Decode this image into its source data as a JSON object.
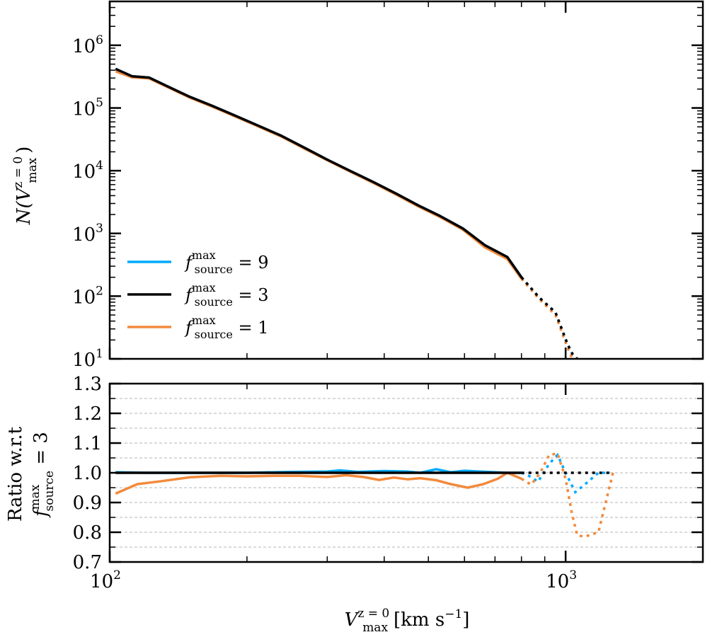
{
  "chart_data": [
    {
      "type": "line",
      "panel": "top",
      "xscale": "log",
      "yscale": "log",
      "xlim": [
        100,
        2000
      ],
      "ylim": [
        10,
        5000000
      ],
      "ylabel_main": "N(V",
      "ylabel_sup": "z = 0",
      "ylabel_sub": "max",
      "ylabel_end": ")",
      "yticks": [
        {
          "value": 10,
          "base": "10",
          "exp": "1"
        },
        {
          "value": 100,
          "base": "10",
          "exp": "2"
        },
        {
          "value": 1000,
          "base": "10",
          "exp": "3"
        },
        {
          "value": 10000,
          "base": "10",
          "exp": "4"
        },
        {
          "value": 100000,
          "base": "10",
          "exp": "5"
        },
        {
          "value": 1000000,
          "base": "10",
          "exp": "6"
        }
      ],
      "solid_until": 800,
      "legend_position": "lower-left",
      "series": [
        {
          "name": "f_source^max = 9",
          "color": "#00aaff",
          "x": [
            103,
            112,
            122,
            135,
            150,
            168,
            188,
            212,
            238,
            268,
            300,
            338,
            380,
            425,
            475,
            530,
            595,
            665,
            745,
            800,
            875,
            950,
            1010,
            1035,
            1060
          ],
          "y": [
            420000,
            320000,
            305000,
            215000,
            150000,
            108000,
            76000,
            52000,
            36000,
            23000,
            15000,
            9800,
            6500,
            4300,
            2800,
            1900,
            1200,
            650,
            420,
            200,
            95,
            55,
            17,
            12,
            10
          ]
        },
        {
          "name": "f_source^max = 3",
          "color": "#000000",
          "x": [
            103,
            112,
            122,
            135,
            150,
            168,
            188,
            212,
            238,
            268,
            300,
            338,
            380,
            425,
            475,
            530,
            595,
            665,
            745,
            800,
            875,
            950,
            1010,
            1035,
            1060
          ],
          "y": [
            420000,
            320000,
            305000,
            215000,
            150000,
            108000,
            76000,
            52000,
            36000,
            23000,
            15000,
            9800,
            6500,
            4300,
            2800,
            1900,
            1200,
            650,
            420,
            200,
            95,
            55,
            17,
            12,
            10
          ]
        },
        {
          "name": "f_source^max = 1",
          "color": "#f28a3c",
          "x": [
            103,
            112,
            122,
            135,
            150,
            168,
            188,
            212,
            238,
            268,
            300,
            338,
            380,
            425,
            475,
            530,
            595,
            665,
            745,
            800,
            875,
            950,
            1010,
            1035
          ],
          "y": [
            385000,
            308000,
            296000,
            210000,
            146000,
            105000,
            74000,
            50500,
            35000,
            22300,
            14700,
            9550,
            6300,
            4150,
            2700,
            1830,
            1150,
            600,
            390,
            190,
            90,
            50,
            15,
            10
          ]
        }
      ]
    },
    {
      "type": "line",
      "panel": "bottom",
      "xscale": "log",
      "yscale": "linear",
      "xlim": [
        100,
        2000
      ],
      "ylim": [
        0.7,
        1.3
      ],
      "grid": true,
      "xlabel_main": "V",
      "xlabel_sup": "z = 0",
      "xlabel_sub": "max",
      "xlabel_units": "[km s",
      "xlabel_units_exp": "−1",
      "xlabel_units_end": "]",
      "ylabel_line1": "Ratio w.r.t",
      "ylabel_line2_f": "f",
      "ylabel_line2_sup": "max",
      "ylabel_line2_sub": "source",
      "ylabel_line2_end": " = 3",
      "yticks": [
        "0.7",
        "0.8",
        "0.9",
        "1.0",
        "1.1",
        "1.2",
        "1.3"
      ],
      "xticks": [
        {
          "value": 100,
          "base": "10",
          "exp": "2"
        },
        {
          "value": 1000,
          "base": "10",
          "exp": "3"
        }
      ],
      "solid_until": 800,
      "series": [
        {
          "name": "f_source^max = 9",
          "color": "#00aaff",
          "x": [
            103,
            120,
            150,
            200,
            250,
            300,
            320,
            350,
            400,
            450,
            480,
            520,
            560,
            600,
            650,
            700,
            745,
            800,
            830,
            870,
            920,
            960,
            1000,
            1050,
            1100,
            1180,
            1250
          ],
          "y": [
            1.002,
            1.0,
            1.0,
            1.0,
            1.003,
            1.004,
            1.008,
            1.003,
            1.006,
            1.004,
            1.0,
            1.012,
            1.002,
            1.007,
            1.004,
            1.002,
            1.0,
            1.0,
            0.99,
            0.97,
            1.03,
            1.06,
            1.0,
            0.935,
            0.96,
            1.0,
            1.0
          ]
        },
        {
          "name": "f_source^max = 3",
          "color": "#000000",
          "x": [
            103,
            150,
            200,
            300,
            400,
            500,
            600,
            700,
            800,
            900,
            1000,
            1100,
            1250
          ],
          "y": [
            1.0,
            1.0,
            1.0,
            1.0,
            1.0,
            1.0,
            1.0,
            1.0,
            1.0,
            1.0,
            1.0,
            1.0,
            1.0
          ]
        },
        {
          "name": "f_source^max = 1",
          "color": "#f28a3c",
          "x": [
            103,
            115,
            130,
            150,
            175,
            200,
            230,
            260,
            300,
            330,
            360,
            390,
            420,
            450,
            480,
            520,
            560,
            610,
            660,
            710,
            745,
            800,
            840,
            880,
            920,
            960,
            1000,
            1030,
            1060,
            1100,
            1180,
            1270
          ],
          "y": [
            0.93,
            0.962,
            0.972,
            0.985,
            0.99,
            0.988,
            0.99,
            0.99,
            0.986,
            0.992,
            0.986,
            0.976,
            0.984,
            0.978,
            0.982,
            0.975,
            0.962,
            0.95,
            0.962,
            0.98,
            1.0,
            0.98,
            0.96,
            1.0,
            1.06,
            1.065,
            0.98,
            0.87,
            0.79,
            0.785,
            0.8,
            1.0
          ]
        }
      ]
    }
  ],
  "legend": [
    {
      "f": "f",
      "sup": "max",
      "sub": "source",
      "value": " = 9",
      "color": "#00aaff"
    },
    {
      "f": "f",
      "sup": "max",
      "sub": "source",
      "value": " = 3",
      "color": "#000000"
    },
    {
      "f": "f",
      "sup": "max",
      "sub": "source",
      "value": " = 1",
      "color": "#f28a3c"
    }
  ]
}
